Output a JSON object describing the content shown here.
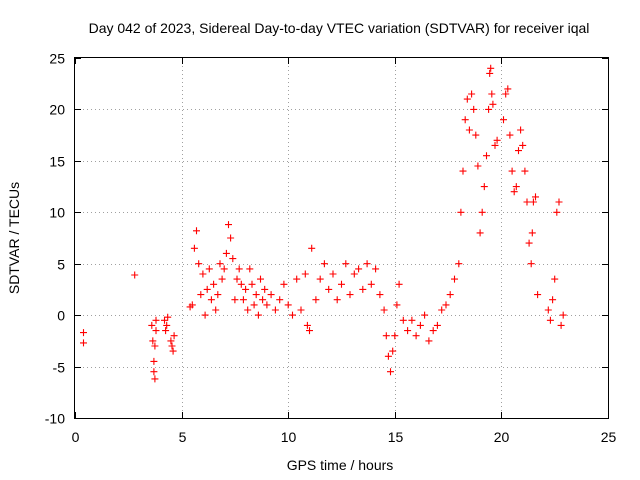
{
  "chart_data": {
    "type": "scatter",
    "title": "Day 042 of 2023, Sidereal Day-to-day VTEC variation (SDTVAR) for receiver iqal",
    "xlabel": "GPS time / hours",
    "ylabel": "SDTVAR / TECUs",
    "xlim": [
      0,
      25
    ],
    "ylim": [
      -10,
      25
    ],
    "xticks": [
      0,
      5,
      10,
      15,
      20,
      25
    ],
    "yticks": [
      -10,
      -5,
      0,
      5,
      10,
      15,
      20,
      25
    ],
    "xtick_labels": [
      "0",
      "5",
      "10",
      "15",
      "20",
      "25"
    ],
    "ytick_labels": [
      "-10",
      "-5",
      "0",
      "5",
      "10",
      "15",
      "20",
      "25"
    ],
    "grid": true,
    "marker": "+",
    "color": "#ff0000",
    "series": [
      {
        "name": "SDTVAR",
        "x": [
          0.4,
          0.4,
          2.8,
          3.6,
          3.65,
          3.7,
          3.7,
          3.75,
          3.75,
          3.8,
          3.8,
          4.2,
          4.25,
          4.3,
          4.35,
          4.5,
          4.55,
          4.6,
          4.65,
          5.4,
          5.5,
          5.6,
          5.7,
          5.8,
          5.9,
          6.0,
          6.1,
          6.2,
          6.3,
          6.4,
          6.5,
          6.6,
          6.7,
          6.8,
          6.9,
          7.0,
          7.1,
          7.2,
          7.3,
          7.4,
          7.5,
          7.6,
          7.7,
          7.8,
          7.9,
          8.0,
          8.1,
          8.2,
          8.3,
          8.4,
          8.5,
          8.6,
          8.7,
          8.8,
          8.9,
          9.0,
          9.2,
          9.4,
          9.6,
          9.8,
          10.0,
          10.2,
          10.4,
          10.6,
          10.8,
          10.9,
          11.0,
          11.1,
          11.3,
          11.5,
          11.7,
          11.9,
          12.1,
          12.3,
          12.5,
          12.7,
          12.9,
          13.1,
          13.3,
          13.5,
          13.7,
          13.9,
          14.1,
          14.3,
          14.5,
          14.6,
          14.7,
          14.8,
          14.9,
          15.0,
          15.1,
          15.2,
          15.4,
          15.6,
          15.8,
          16.0,
          16.2,
          16.4,
          16.6,
          16.8,
          17.0,
          17.2,
          17.4,
          17.6,
          17.8,
          18.0,
          18.1,
          18.2,
          18.3,
          18.4,
          18.5,
          18.6,
          18.7,
          18.8,
          18.9,
          19.0,
          19.1,
          19.2,
          19.3,
          19.4,
          19.45,
          19.5,
          19.55,
          19.6,
          19.7,
          19.8,
          20.1,
          20.2,
          20.3,
          20.4,
          20.5,
          20.6,
          20.7,
          20.8,
          20.9,
          21.0,
          21.1,
          21.2,
          21.3,
          21.4,
          21.45,
          21.5,
          21.6,
          21.7,
          22.2,
          22.3,
          22.4,
          22.5,
          22.6,
          22.7,
          22.8,
          22.9
        ],
        "y": [
          -1.7,
          -2.7,
          3.9,
          -1.0,
          -2.5,
          -4.5,
          -5.5,
          -6.2,
          -3.0,
          -1.5,
          -0.5,
          -0.5,
          -1.5,
          -1.0,
          -0.2,
          -2.5,
          -3.0,
          -3.5,
          -2.0,
          0.8,
          1.0,
          6.5,
          8.2,
          5.0,
          2.0,
          4.0,
          0.0,
          2.5,
          4.5,
          1.5,
          3.0,
          0.5,
          2.0,
          5.0,
          3.5,
          4.5,
          6.0,
          8.8,
          7.5,
          5.5,
          1.5,
          3.5,
          4.5,
          3.0,
          1.5,
          2.5,
          0.5,
          4.5,
          3.0,
          1.0,
          2.0,
          0.0,
          3.5,
          1.5,
          2.5,
          1.0,
          2.0,
          0.5,
          1.5,
          3.0,
          1.0,
          0.0,
          3.5,
          0.5,
          4.0,
          -1.0,
          -1.5,
          6.5,
          1.5,
          3.5,
          5.0,
          2.5,
          4.0,
          1.5,
          3.0,
          5.0,
          2.0,
          4.0,
          4.5,
          2.5,
          5.0,
          3.0,
          4.5,
          2.0,
          0.5,
          -2.0,
          -4.0,
          -5.5,
          -3.5,
          -2.0,
          1.0,
          3.0,
          -0.5,
          -1.5,
          -0.5,
          -2.0,
          -1.0,
          0.0,
          -2.5,
          -1.5,
          -1.0,
          0.5,
          1.0,
          2.0,
          3.5,
          5.0,
          10.0,
          14.0,
          19.0,
          21.0,
          18.0,
          21.5,
          20.0,
          17.5,
          14.5,
          8.0,
          10.0,
          12.5,
          15.5,
          20.0,
          23.5,
          24.0,
          21.5,
          20.5,
          16.5,
          17.0,
          19.0,
          21.5,
          22.0,
          17.5,
          14.0,
          12.0,
          12.5,
          16.0,
          18.0,
          16.5,
          14.0,
          11.0,
          7.0,
          5.0,
          8.0,
          11.0,
          11.5,
          2.0,
          0.5,
          -0.5,
          1.5,
          3.5,
          10.0,
          11.0,
          -1.0,
          0.0
        ]
      }
    ]
  }
}
